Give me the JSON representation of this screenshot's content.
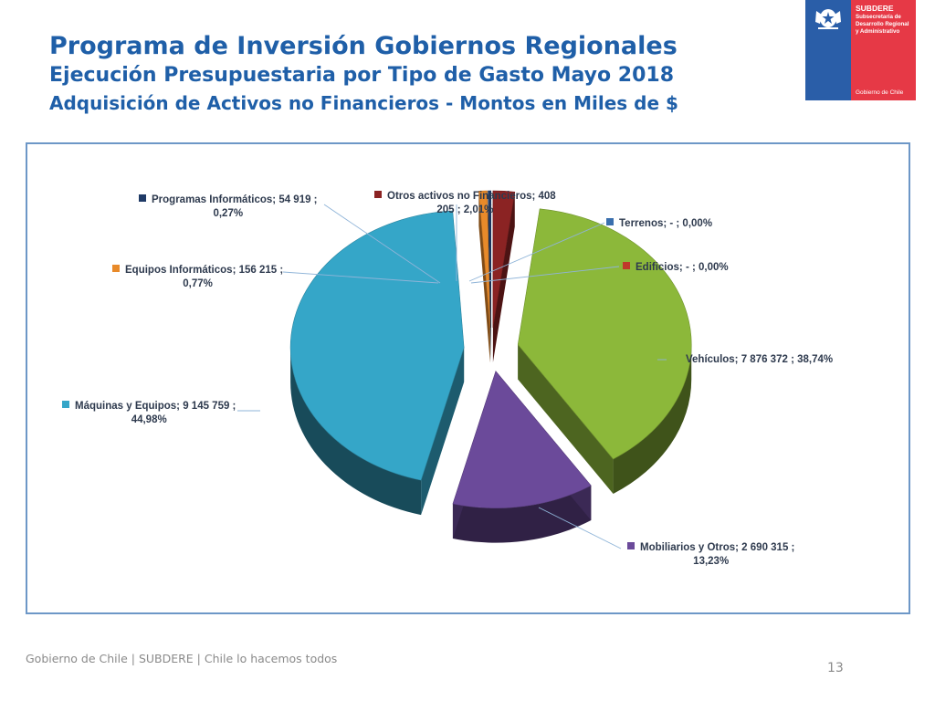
{
  "header": {
    "title": "Programa de Inversión Gobiernos Regionales",
    "subtitle": "Ejecución Presupuestaria por Tipo de Gasto Mayo 2018",
    "subtitle2": "Adquisición de Activos no Financieros - Montos en Miles de $"
  },
  "logo": {
    "name": "SUBDERE",
    "sub1": "Subsecretaría de",
    "sub2": "Desarrollo Regional",
    "sub3": "y Administrativo",
    "gob": "Gobierno de Chile",
    "colors": {
      "blue": "#2a5ea8",
      "red": "#e63946"
    }
  },
  "chart_data": {
    "type": "pie",
    "title": "",
    "categories": [
      "Vehículos",
      "Mobiliarios y Otros",
      "Máquinas y Equipos",
      "Equipos Informáticos",
      "Programas Informáticos",
      "Otros activos no Financieros",
      "Terrenos",
      "Edificios"
    ],
    "values": [
      7876372,
      2690315,
      9145759,
      156215,
      54919,
      408205,
      0,
      0
    ],
    "percentages": [
      38.74,
      13.23,
      44.98,
      0.77,
      0.27,
      2.01,
      0.0,
      0.0
    ],
    "colors": [
      "#8cb83a",
      "#6b4a9a",
      "#35a6c8",
      "#e88a2a",
      "#1f3a66",
      "#8b2323",
      "#3a6fae",
      "#c0392b"
    ],
    "labels": [
      {
        "line1": "Vehículos;  7 876 372 ; 38,74%",
        "line2": ""
      },
      {
        "line1": "Mobiliarios y Otros;  2 690 315 ;",
        "line2": "13,23%"
      },
      {
        "line1": "Máquinas y Equipos;  9 145 759 ;",
        "line2": "44,98%"
      },
      {
        "line1": "Equipos Informáticos;  156 215 ;",
        "line2": "0,77%"
      },
      {
        "line1": "Programas Informáticos;  54 919 ;",
        "line2": "0,27%"
      },
      {
        "line1": "Otros activos no Financieros;  408",
        "line2": "205 ; 2,01%"
      },
      {
        "line1": "Terrenos;  -   ; 0,00%",
        "line2": ""
      },
      {
        "line1": "Edificios;  -   ; 0,00%",
        "line2": ""
      }
    ]
  },
  "footer": {
    "text": "Gobierno de Chile | SUBDERE | Chile lo hacemos todos",
    "page": "13"
  }
}
